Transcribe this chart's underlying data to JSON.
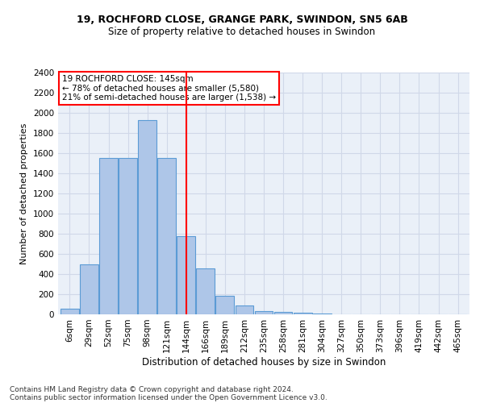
{
  "title1": "19, ROCHFORD CLOSE, GRANGE PARK, SWINDON, SN5 6AB",
  "title2": "Size of property relative to detached houses in Swindon",
  "xlabel": "Distribution of detached houses by size in Swindon",
  "ylabel": "Number of detached properties",
  "footnote1": "Contains HM Land Registry data © Crown copyright and database right 2024.",
  "footnote2": "Contains public sector information licensed under the Open Government Licence v3.0.",
  "categories": [
    "6sqm",
    "29sqm",
    "52sqm",
    "75sqm",
    "98sqm",
    "121sqm",
    "144sqm",
    "166sqm",
    "189sqm",
    "212sqm",
    "235sqm",
    "258sqm",
    "281sqm",
    "304sqm",
    "327sqm",
    "350sqm",
    "373sqm",
    "396sqm",
    "419sqm",
    "442sqm",
    "465sqm"
  ],
  "values": [
    60,
    500,
    1550,
    1550,
    1930,
    1550,
    780,
    460,
    185,
    90,
    35,
    25,
    20,
    5,
    0,
    0,
    0,
    0,
    0,
    0,
    0
  ],
  "bar_color": "#aec6e8",
  "bar_edge_color": "#5b9bd5",
  "vline_color": "red",
  "vline_index": 6.5,
  "annotation_text": "19 ROCHFORD CLOSE: 145sqm\n← 78% of detached houses are smaller (5,580)\n21% of semi-detached houses are larger (1,538) →",
  "annotation_box_color": "white",
  "annotation_box_edge_color": "red",
  "ylim": [
    0,
    2400
  ],
  "yticks": [
    0,
    200,
    400,
    600,
    800,
    1000,
    1200,
    1400,
    1600,
    1800,
    2000,
    2200,
    2400
  ],
  "grid_color": "#d0d8e8",
  "bg_color": "#eaf0f8",
  "title1_fontsize": 9,
  "title2_fontsize": 8.5,
  "xlabel_fontsize": 8.5,
  "ylabel_fontsize": 8,
  "footnote_fontsize": 6.5,
  "tick_fontsize": 7.5
}
